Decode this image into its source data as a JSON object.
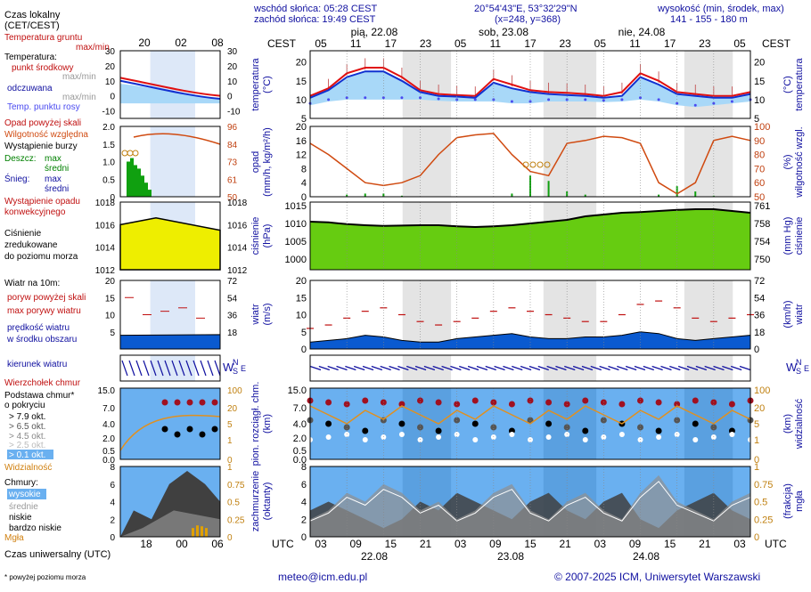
{
  "header": {
    "local_time_label": "Czas lokalny",
    "local_time_tz": "(CET/CEST)",
    "sunrise": "wschód słońca: 05:28 CEST",
    "sunset": "zachód słońca: 19:49 CEST",
    "coords": "20°54'43\"E, 53°32'29\"N",
    "grid": "(x=248, y=368)",
    "elevation_label": "wysokość (min, środek, max)",
    "elevation_value": "141 - 155 - 180 m",
    "cest": "CEST",
    "utc": "UTC"
  },
  "top_axis": {
    "legend_ticks": [
      "20",
      "02",
      "08"
    ],
    "main_ticks": [
      "05",
      "11",
      "17",
      "23",
      "05",
      "11",
      "17",
      "23",
      "05",
      "11",
      "17",
      "23",
      "05"
    ],
    "days": [
      "pią, 22.08",
      "sob, 23.08",
      "nie, 24.08"
    ]
  },
  "bottom_axis": {
    "legend_ticks": [
      "18",
      "00",
      "06"
    ],
    "main_ticks": [
      "03",
      "09",
      "15",
      "21",
      "03",
      "09",
      "15",
      "21",
      "03",
      "09",
      "15",
      "21",
      "03"
    ],
    "dates": [
      "22.08",
      "23.08",
      "24.08"
    ],
    "utc_label": "Czas uniwersalny (UTC)"
  },
  "legend": {
    "soil_temp": "Temperatura gruntu",
    "soil_temp_sub": "max/min",
    "temperature": "Temperatura:",
    "mid_point": "punkt środkowy",
    "mid_sub": "max/min",
    "perceived": "odczuwana",
    "perceived_sub": "max/min",
    "dew_point": "Temp. punktu rosy",
    "precip_above": "Opad powyżej skali",
    "humidity": "Wilgotność względna",
    "storm": "Wystąpienie burzy",
    "rain": "Deszcz:",
    "rain_max": "max",
    "rain_mean": "średni",
    "snow": "Śnieg:",
    "snow_max": "max",
    "snow_mean": "średni",
    "conv": "Wystąpienie opadu",
    "conv2": "konwekcyjnego",
    "pressure1": "Ciśnienie",
    "pressure2": "zredukowane",
    "pressure3": "do poziomu morza",
    "wind_title": "Wiatr na 10m:",
    "gust_above": "poryw powyżej skali",
    "gust_max": "max porywy wiatru",
    "wind_speed": "prędkość wiatru",
    "wind_area": "w środku obszaru",
    "wind_dir": "kierunek wiatru",
    "cloud_top": "Wierzchołek chmur",
    "cloud_base1": "Podstawa chmur*",
    "cloud_base2": "o pokryciu",
    "okt_79": "> 7.9 okt.",
    "okt_65": "> 6.5 okt.",
    "okt_45": "> 4.5 okt.",
    "okt_25": "> 2.5 okt.",
    "okt_01": "> 0.1 okt.",
    "visibility": "Widzialność",
    "clouds": "Chmury:",
    "high": "wysokie",
    "mid": "średnie",
    "low": "niskie",
    "very_low": "bardzo niskie",
    "fog": "Mgła",
    "footnote": "* powyżej poziomu morza"
  },
  "panel_labels": {
    "temp_l": "temperatura",
    "temp_l2": "(°C)",
    "temp_r": "(°C)",
    "temp_r2": "temperatura",
    "precip_l1": "opad",
    "precip_l2": "(mm/h, kg/m²/h)",
    "precip_r1": "(%)",
    "precip_r2": "wilgotność wzgl.",
    "press_l1": "ciśnienie",
    "press_l2": "(hPa)",
    "press_r1": "(mm Hg)",
    "press_r2": "ciśnienie",
    "wind_l1": "wiatr",
    "wind_l2": "(m/s)",
    "wind_r1": "(km/h)",
    "wind_r2": "wiatr",
    "dir_w": "W",
    "dir_n": "N",
    "dir_s": "S",
    "dir_e": "E",
    "cloud_l1": "pion. rozciągł. chm.",
    "cloud_l2": "(km)",
    "cloud_r1": "(km)",
    "cloud_r2": "widzialność",
    "cov_l1": "zachmurzenie",
    "cov_l2": "(oktanty)",
    "cov_r1": "(frakcja)",
    "cov_r2": "mgła"
  },
  "axes": {
    "temp_left": [
      "20",
      "15",
      "10",
      "5"
    ],
    "temp_right": [
      "20",
      "15",
      "10",
      "5"
    ],
    "legend_temp_left": [
      "30",
      "20",
      "10",
      "0",
      "-10"
    ],
    "legend_temp_right": [
      "30",
      "20",
      "10",
      "0",
      "-10"
    ],
    "precip_left": [
      "20",
      "16",
      "12",
      "8",
      "4",
      "0"
    ],
    "precip_right": [
      "100",
      "90",
      "80",
      "70",
      "60",
      "50"
    ],
    "legend_precip_left": [
      "2.0",
      "1.5",
      "1.0",
      "0.5",
      "0"
    ],
    "legend_precip_right": [
      "96",
      "84",
      "73",
      "61",
      "50"
    ],
    "press_left": [
      "1015",
      "1010",
      "1005",
      "1000"
    ],
    "press_right": [
      "761",
      "758",
      "754",
      "750"
    ],
    "legend_press_left": [
      "1018",
      "1016",
      "1014",
      "1012"
    ],
    "legend_press_right": [
      "1018",
      "1016",
      "1014",
      "1012"
    ],
    "wind_left": [
      "20",
      "15",
      "10",
      "5",
      "0"
    ],
    "wind_right": [
      "72",
      "54",
      "36",
      "18",
      "0"
    ],
    "legend_wind_left": [
      "20",
      "15",
      "10",
      "5"
    ],
    "legend_wind_right": [
      "72",
      "54",
      "36",
      "18"
    ],
    "cloud_left": [
      "15.0",
      "7.0",
      "4.0",
      "2.0",
      "0.5",
      "0.0"
    ],
    "cloud_right": [
      "100",
      "20",
      "5",
      "1",
      "0"
    ],
    "cov_left": [
      "8",
      "6",
      "4",
      "2",
      "0"
    ],
    "cov_right": [
      "1",
      "0.75",
      "0.5",
      "0.25",
      "0"
    ]
  },
  "footer": {
    "email": "meteo@icm.edu.pl",
    "copyright": "© 2007-2025 ICM, Uniwersytet Warszawski"
  },
  "colors": {
    "temp": "#e01010",
    "perceived": "#1030d0",
    "dew": "#4a4af0",
    "humidity": "#d04a10",
    "pressure": "#aaee11",
    "wind": "#0a5ad0",
    "cloud_bg": "#6ab0f0"
  },
  "chart_data": [
    {
      "type": "line",
      "title": "temperatura",
      "ylabel": "(°C)",
      "ylim": [
        5,
        23
      ],
      "x": [
        "05",
        "08",
        "11",
        "14",
        "17",
        "20",
        "23",
        "02",
        "05",
        "08",
        "11",
        "14",
        "17",
        "20",
        "23",
        "02",
        "05",
        "08",
        "11",
        "14",
        "17",
        "20",
        "23",
        "02",
        "05"
      ],
      "series": [
        {
          "name": "punkt środkowy",
          "values": [
            11,
            13,
            17,
            18.5,
            18.5,
            16,
            12.5,
            11.5,
            11.2,
            11,
            15.5,
            14,
            12.5,
            12,
            11.8,
            11.5,
            11,
            12,
            17,
            15,
            12,
            11.5,
            11,
            11,
            12
          ]
        },
        {
          "name": "odczuwana",
          "values": [
            10.5,
            12.5,
            16,
            17.5,
            17.5,
            15,
            12,
            11,
            10.8,
            10.5,
            14.5,
            13,
            12,
            11.5,
            11.2,
            11,
            10.5,
            11,
            16,
            14,
            11.5,
            11,
            10.5,
            10.5,
            11.5
          ]
        },
        {
          "name": "Temp. punktu rosy",
          "values": [
            9,
            10,
            10.5,
            10.5,
            10.5,
            10.5,
            10.5,
            10.2,
            10,
            10,
            10,
            9.5,
            9.5,
            10,
            10,
            10,
            9.8,
            10,
            10.5,
            10,
            9,
            8.5,
            9,
            9.5,
            10
          ]
        }
      ]
    },
    {
      "type": "line",
      "title": "opad",
      "ylabel": "(mm/h, kg/m²/h)",
      "ylim": [
        0,
        20
      ],
      "x": [
        "05",
        "08",
        "11",
        "14",
        "17",
        "20",
        "23",
        "02",
        "05",
        "08",
        "11",
        "14",
        "17",
        "20",
        "23",
        "02",
        "05",
        "08",
        "11",
        "14",
        "17",
        "20",
        "23",
        "02",
        "05"
      ],
      "series": [
        {
          "name": "Wilgotność względna",
          "values": [
            88,
            80,
            70,
            60,
            58,
            60,
            65,
            80,
            92,
            94,
            95,
            80,
            68,
            65,
            88,
            90,
            93,
            92,
            88,
            60,
            52,
            60,
            90,
            93,
            90
          ]
        },
        {
          "name": "Deszcz: średni",
          "values": [
            0,
            0,
            0.2,
            0.3,
            0.3,
            0.1,
            0,
            0,
            0,
            0,
            0,
            0.3,
            2.0,
            1.5,
            0.5,
            0.2,
            0,
            0,
            0,
            0.2,
            1.0,
            0.5,
            0.1,
            0,
            0
          ]
        }
      ]
    },
    {
      "type": "area",
      "title": "ciśnienie",
      "ylabel": "(hPa)",
      "ylim": [
        997,
        1016
      ],
      "x": [
        "05",
        "08",
        "11",
        "14",
        "17",
        "20",
        "23",
        "02",
        "05",
        "08",
        "11",
        "14",
        "17",
        "20",
        "23",
        "02",
        "05",
        "08",
        "11",
        "14",
        "17",
        "20",
        "23",
        "02",
        "05"
      ],
      "values": [
        1010.5,
        1010.3,
        1009.8,
        1009.5,
        1009.3,
        1009.4,
        1009.5,
        1009.5,
        1009.2,
        1009.0,
        1009.2,
        1009.5,
        1010.0,
        1010.5,
        1011.0,
        1012.0,
        1012.5,
        1013.0,
        1013.2,
        1013.5,
        1013.8,
        1014.0,
        1014.0,
        1013.5,
        1013.0
      ]
    },
    {
      "type": "area",
      "title": "wiatr",
      "ylabel": "(m/s)",
      "ylim": [
        0,
        20
      ],
      "x": [
        "05",
        "08",
        "11",
        "14",
        "17",
        "20",
        "23",
        "02",
        "05",
        "08",
        "11",
        "14",
        "17",
        "20",
        "23",
        "02",
        "05",
        "08",
        "11",
        "14",
        "17",
        "20",
        "23",
        "02",
        "05"
      ],
      "series": [
        {
          "name": "prędkość wiatru",
          "values": [
            2,
            2.5,
            3,
            4,
            3.5,
            2.5,
            2,
            2,
            3,
            3.5,
            4,
            4.5,
            3.5,
            3,
            3,
            3.5,
            3.5,
            4,
            5,
            4.5,
            3,
            2.5,
            3,
            3.5,
            4
          ]
        },
        {
          "name": "max porywy wiatru",
          "values": [
            6,
            7,
            9,
            11,
            12,
            10,
            8,
            7,
            8,
            9,
            11,
            12,
            11,
            10,
            9,
            8,
            8,
            10,
            13,
            14,
            12,
            9,
            8,
            9,
            10
          ]
        }
      ]
    },
    {
      "type": "area",
      "title": "zachmurzenie",
      "ylabel": "(oktanty)",
      "ylim": [
        0,
        8
      ],
      "x": [
        "05",
        "08",
        "11",
        "14",
        "17",
        "20",
        "23",
        "02",
        "05",
        "08",
        "11",
        "14",
        "17",
        "20",
        "23",
        "02",
        "05",
        "08",
        "11",
        "14",
        "17",
        "20",
        "23",
        "02",
        "05"
      ],
      "series": [
        {
          "name": "niskie",
          "values": [
            3,
            4,
            3,
            2,
            1,
            2,
            4,
            3,
            5,
            4,
            3,
            2,
            4,
            5,
            3,
            2,
            4,
            5,
            2,
            1,
            3,
            4,
            5,
            3,
            2
          ]
        },
        {
          "name": "wysokie",
          "values": [
            2,
            3,
            5,
            4,
            6,
            5,
            3,
            4,
            2,
            3,
            5,
            6,
            3,
            2,
            4,
            5,
            3,
            2,
            5,
            7,
            4,
            3,
            2,
            4,
            5
          ]
        }
      ]
    }
  ]
}
